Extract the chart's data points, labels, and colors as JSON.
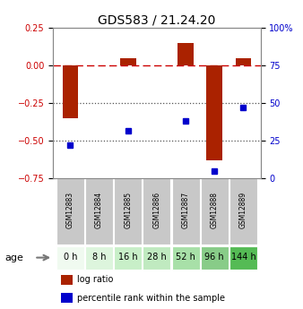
{
  "title": "GDS583 / 21.24.20",
  "samples": [
    "GSM12883",
    "GSM12884",
    "GSM12885",
    "GSM12886",
    "GSM12887",
    "GSM12888",
    "GSM12889"
  ],
  "ages": [
    "0 h",
    "8 h",
    "16 h",
    "28 h",
    "52 h",
    "96 h",
    "144 h"
  ],
  "log_ratio": [
    -0.35,
    0.0,
    0.05,
    0.0,
    0.15,
    -0.63,
    0.05
  ],
  "percentile_rank_raw": [
    22,
    -1,
    32,
    -1,
    38,
    5,
    47
  ],
  "ylim_left": [
    -0.75,
    0.25
  ],
  "ylim_right": [
    0,
    100
  ],
  "yticks_left": [
    0.25,
    0.0,
    -0.25,
    -0.5,
    -0.75
  ],
  "yticks_right": [
    100,
    75,
    50,
    25,
    0
  ],
  "hlines_dotted": [
    -0.25,
    -0.5
  ],
  "bar_color": "#aa2200",
  "dot_color": "#0000cc",
  "bar_width": 0.55,
  "age_colors": [
    "#f0faf0",
    "#ddf5dd",
    "#c8efc8",
    "#c0eac0",
    "#a8e0a8",
    "#88cc88",
    "#55bb55"
  ],
  "sample_bg_color": "#c8c8c8",
  "legend_bar_label": "log ratio",
  "legend_dot_label": "percentile rank within the sample",
  "age_label": "age",
  "dashed_line_color": "#cc0000",
  "dotted_line_color": "#555555",
  "right_axis_color": "#0000cc",
  "left_axis_color": "#cc0000",
  "title_fontsize": 10,
  "tick_fontsize": 7,
  "sample_fontsize": 5.5,
  "age_fontsize": 7,
  "legend_fontsize": 7
}
